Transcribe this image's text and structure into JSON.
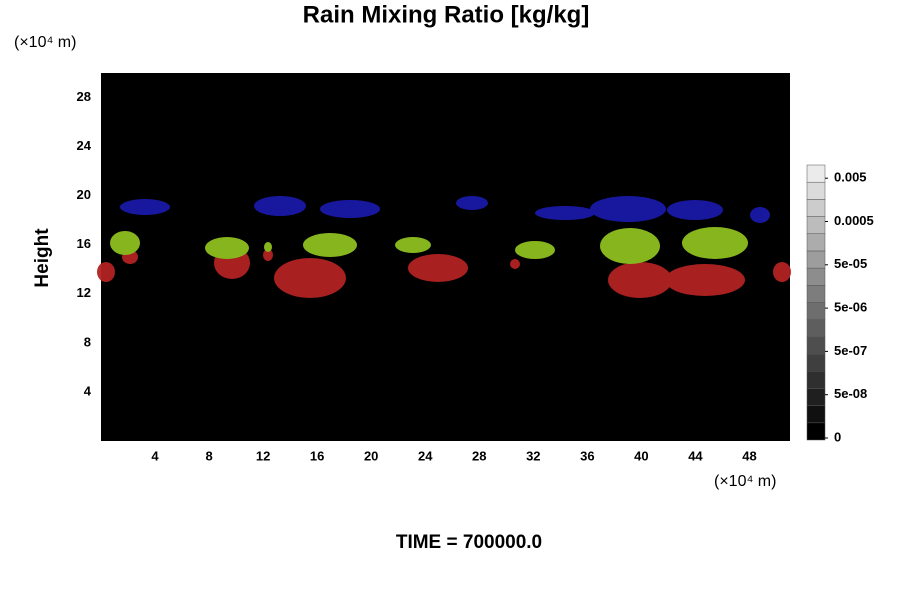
{
  "chart_data": {
    "type": "contour",
    "title": "Rain Mixing Ratio [kg/kg]",
    "y_label": "Height",
    "y_unit": "(×10⁴ m)",
    "x_unit": "(×10⁴ m)",
    "footer": "TIME = 700000.0",
    "xlim": [
      0,
      51
    ],
    "xticks": [
      4,
      8,
      12,
      16,
      20,
      24,
      28,
      32,
      36,
      40,
      44,
      48
    ],
    "ylim": [
      0,
      30
    ],
    "yticks": [
      4,
      8,
      12,
      16,
      20,
      24,
      28
    ],
    "colorbar_ticks": [
      0,
      {
        "value": 5e-08,
        "label": "5e-08"
      },
      {
        "value": 5e-07,
        "label": "5e-07"
      },
      {
        "value": 5e-06,
        "label": "5e-06"
      },
      {
        "value": 5e-05,
        "label": "5e-05"
      },
      0.0005,
      0.005
    ]
  }
}
